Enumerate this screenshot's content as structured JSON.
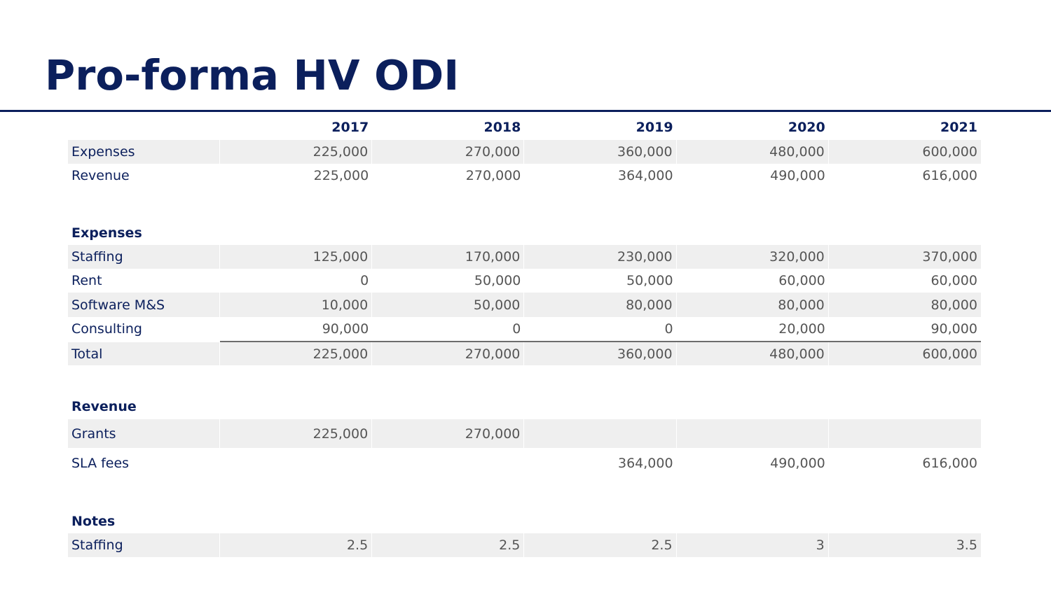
{
  "title": "Pro-forma HV ODI",
  "years": [
    "2017",
    "2018",
    "2019",
    "2020",
    "2021"
  ],
  "summary": {
    "rows": [
      {
        "label": "Expenses",
        "values": [
          "225,000",
          "270,000",
          "360,000",
          "480,000",
          "600,000"
        ]
      },
      {
        "label": "Revenue",
        "values": [
          "225,000",
          "270,000",
          "364,000",
          "490,000",
          "616,000"
        ]
      }
    ]
  },
  "expenses": {
    "heading": "Expenses",
    "rows": [
      {
        "label": "Staffing",
        "values": [
          "125,000",
          "170,000",
          "230,000",
          "320,000",
          "370,000"
        ]
      },
      {
        "label": "Rent",
        "values": [
          "0",
          "50,000",
          "50,000",
          "60,000",
          "60,000"
        ]
      },
      {
        "label": "Software M&S",
        "values": [
          "10,000",
          "50,000",
          "80,000",
          "80,000",
          "80,000"
        ]
      },
      {
        "label": "Consulting",
        "values": [
          "90,000",
          "0",
          "0",
          "20,000",
          "90,000"
        ]
      },
      {
        "label": "Total",
        "values": [
          "225,000",
          "270,000",
          "360,000",
          "480,000",
          "600,000"
        ]
      }
    ]
  },
  "revenue": {
    "heading": "Revenue",
    "rows": [
      {
        "label": "Grants",
        "values": [
          "225,000",
          "270,000",
          "",
          "",
          ""
        ]
      },
      {
        "label": "SLA fees",
        "values": [
          "",
          "",
          "364,000",
          "490,000",
          "616,000"
        ]
      }
    ]
  },
  "notes": {
    "heading": "Notes",
    "rows": [
      {
        "label": "Staffing",
        "values": [
          "2.5",
          "2.5",
          "2.5",
          "3",
          "3.5"
        ]
      }
    ]
  }
}
